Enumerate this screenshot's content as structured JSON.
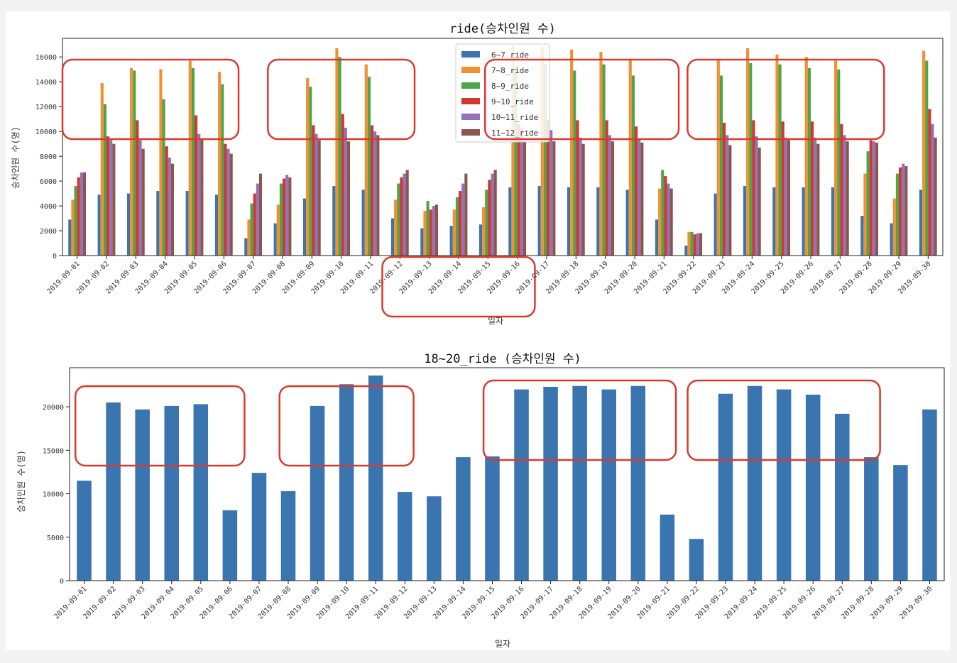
{
  "chart_data": [
    {
      "type": "bar",
      "title": "ride(승차인원 수)",
      "xlabel": "일자",
      "ylabel": "승차인원 수(명)",
      "ylim": [
        0,
        17500
      ],
      "yticks": [
        0,
        2000,
        4000,
        6000,
        8000,
        10000,
        12000,
        14000,
        16000
      ],
      "grid": false,
      "legend": "top-center",
      "categories": [
        "2019-09-01",
        "2019-09-02",
        "2019-09-03",
        "2019-09-04",
        "2019-09-05",
        "2019-09-06",
        "2019-09-07",
        "2019-09-08",
        "2019-09-09",
        "2019-09-10",
        "2019-09-11",
        "2019-09-12",
        "2019-09-13",
        "2019-09-14",
        "2019-09-15",
        "2019-09-16",
        "2019-09-17",
        "2019-09-18",
        "2019-09-19",
        "2019-09-20",
        "2019-09-21",
        "2019-09-22",
        "2019-09-23",
        "2019-09-24",
        "2019-09-25",
        "2019-09-26",
        "2019-09-27",
        "2019-09-28",
        "2019-09-29",
        "2019-09-30"
      ],
      "series": [
        {
          "name": "6~7_ride",
          "color": "#3a75b0",
          "values": [
            2900,
            4900,
            5000,
            5200,
            5200,
            4900,
            1400,
            2600,
            4600,
            5600,
            5300,
            3000,
            2200,
            2400,
            2500,
            5500,
            5600,
            5500,
            5500,
            5300,
            2900,
            800,
            5000,
            5600,
            5500,
            5500,
            5500,
            3200,
            2600,
            5300
          ]
        },
        {
          "name": "7~8_ride",
          "color": "#f28f33",
          "values": [
            4500,
            13900,
            15100,
            15000,
            15700,
            14800,
            2900,
            4100,
            14300,
            16700,
            15400,
            4500,
            3600,
            3700,
            3900,
            16900,
            16800,
            16600,
            16400,
            15800,
            5400,
            1900,
            15800,
            16700,
            16200,
            16000,
            15700,
            6600,
            4600,
            16500
          ]
        },
        {
          "name": "8~9_ride",
          "color": "#4ea546",
          "values": [
            5600,
            12200,
            14900,
            12600,
            15100,
            13800,
            4200,
            5800,
            13600,
            16000,
            14400,
            5800,
            4400,
            4700,
            5300,
            15200,
            15400,
            14900,
            15400,
            14500,
            6900,
            1900,
            14500,
            15500,
            15400,
            15100,
            15000,
            8400,
            6600,
            15700
          ]
        },
        {
          "name": "9~10_ride",
          "color": "#cf3731",
          "values": [
            6300,
            9600,
            10900,
            8800,
            11300,
            9000,
            5000,
            6200,
            10500,
            11400,
            10500,
            6300,
            3700,
            5200,
            6100,
            10600,
            10900,
            10900,
            10900,
            10400,
            6400,
            1700,
            10700,
            10900,
            10800,
            10800,
            10600,
            9300,
            7100,
            11800
          ]
        },
        {
          "name": "10~11_ride",
          "color": "#9472bb",
          "values": [
            6700,
            9300,
            9300,
            7900,
            9800,
            8600,
            5800,
            6500,
            9800,
            10300,
            10000,
            6600,
            4000,
            5800,
            6600,
            10300,
            10100,
            9500,
            9700,
            9400,
            5800,
            1800,
            9700,
            9600,
            9500,
            9500,
            9700,
            9200,
            7400,
            10600
          ]
        },
        {
          "name": "11~12_ride",
          "color": "#8b564c",
          "values": [
            6700,
            9000,
            8600,
            7400,
            9400,
            8200,
            6600,
            6300,
            9300,
            9200,
            9700,
            6900,
            4100,
            6600,
            6900,
            9200,
            9200,
            9000,
            9200,
            9100,
            5400,
            1800,
            8900,
            8700,
            9300,
            9000,
            9200,
            9100,
            7200,
            9500
          ]
        }
      ]
    },
    {
      "type": "bar",
      "title": "18~20_ride (승차인원 수)",
      "xlabel": "일자",
      "ylabel": "승차인원 수(명)",
      "ylim": [
        0,
        24500
      ],
      "yticks": [
        0,
        5000,
        10000,
        15000,
        20000
      ],
      "grid": false,
      "categories": [
        "2019-09-01",
        "2019-09-02",
        "2019-09-03",
        "2019-09-04",
        "2019-09-05",
        "2019-09-06",
        "2019-09-07",
        "2019-09-08",
        "2019-09-09",
        "2019-09-10",
        "2019-09-11",
        "2019-09-12",
        "2019-09-13",
        "2019-09-14",
        "2019-09-15",
        "2019-09-16",
        "2019-09-17",
        "2019-09-18",
        "2019-09-19",
        "2019-09-20",
        "2019-09-21",
        "2019-09-22",
        "2019-09-23",
        "2019-09-24",
        "2019-09-25",
        "2019-09-26",
        "2019-09-27",
        "2019-09-28",
        "2019-09-29",
        "2019-09-30"
      ],
      "series": [
        {
          "color": "#3a75b0",
          "values": [
            11500,
            20500,
            19700,
            20100,
            20300,
            8100,
            12400,
            10300,
            20100,
            22600,
            23600,
            10200,
            9700,
            14200,
            14300,
            22000,
            22300,
            22400,
            22000,
            22400,
            7600,
            4800,
            21500,
            22400,
            22000,
            21400,
            19200,
            14200,
            13300,
            19700
          ]
        }
      ]
    }
  ],
  "highlight_color": "#d93a2e"
}
